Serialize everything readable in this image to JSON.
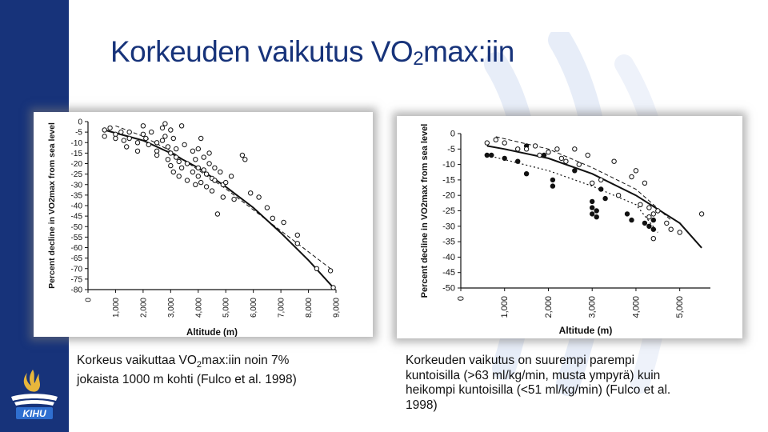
{
  "slide": {
    "title_pre": "Korkeuden vaikutus VO",
    "title_sub": "2",
    "title_post": "max:iin",
    "accent_color": "#17337a",
    "logo_text": "KIHU"
  },
  "caption_left": {
    "line1_pre": "Korkeus vaikuttaa VO",
    "line1_sub": "2",
    "line1_post": "max:iin noin 7%",
    "line2": "jokaista 1000 m kohti (Fulco et al. 1998)"
  },
  "caption_right": {
    "line1": "Korkeuden vaikutus on suurempi parempi",
    "line2": "kuntoisilla (>63 ml/kg/min, musta ympyrä) kuin",
    "line3": "heikompi kuntoisilla (<51 ml/kg/min) (Fulco et al.",
    "line4": "1998)"
  },
  "chart_data": [
    {
      "type": "scatter",
      "xlabel": "Altitude (m)",
      "ylabel": "Percent decline in VO2max from sea level",
      "x_ticks": [
        "0",
        "1,000",
        "2,000",
        "3,000",
        "4,000",
        "5,000",
        "6,000",
        "7,000",
        "8,000",
        "9,000"
      ],
      "y_ticks": [
        "0",
        "-5",
        "-10",
        "-15",
        "-20",
        "-25",
        "-30",
        "-35",
        "-40",
        "-45",
        "-50",
        "-55",
        "-60",
        "-65",
        "-70",
        "-75",
        "-80"
      ],
      "xlim": [
        0,
        9000
      ],
      "ylim": [
        -80,
        0
      ],
      "series": [
        {
          "marker": "open",
          "points": [
            [
              600,
              -4
            ],
            [
              600,
              -7
            ],
            [
              800,
              -3
            ],
            [
              1000,
              -6
            ],
            [
              1000,
              -8
            ],
            [
              1200,
              -5
            ],
            [
              1300,
              -9
            ],
            [
              1400,
              -12
            ],
            [
              1500,
              -5
            ],
            [
              1500,
              -8
            ],
            [
              1800,
              -10
            ],
            [
              1800,
              -14
            ],
            [
              2000,
              -2
            ],
            [
              2000,
              -6
            ],
            [
              2100,
              -8
            ],
            [
              2200,
              -11
            ],
            [
              2300,
              -5
            ],
            [
              2500,
              -10
            ],
            [
              2500,
              -14
            ],
            [
              2500,
              -16
            ],
            [
              2700,
              -3
            ],
            [
              2700,
              -9
            ],
            [
              2800,
              -1
            ],
            [
              2800,
              -7
            ],
            [
              2900,
              -12
            ],
            [
              2900,
              -18
            ],
            [
              3000,
              -4
            ],
            [
              3000,
              -15
            ],
            [
              3000,
              -21
            ],
            [
              3100,
              -8
            ],
            [
              3100,
              -24
            ],
            [
              3200,
              -13
            ],
            [
              3200,
              -17
            ],
            [
              3300,
              -19
            ],
            [
              3300,
              -26
            ],
            [
              3400,
              -2
            ],
            [
              3400,
              -22
            ],
            [
              3500,
              -11
            ],
            [
              3600,
              -20
            ],
            [
              3600,
              -28
            ],
            [
              3800,
              -14
            ],
            [
              3800,
              -24
            ],
            [
              3900,
              -18
            ],
            [
              3900,
              -30
            ],
            [
              4000,
              -13
            ],
            [
              4000,
              -22
            ],
            [
              4000,
              -26
            ],
            [
              4100,
              -8
            ],
            [
              4100,
              -29
            ],
            [
              4200,
              -17
            ],
            [
              4200,
              -23
            ],
            [
              4300,
              -25
            ],
            [
              4300,
              -31
            ],
            [
              4400,
              -15
            ],
            [
              4400,
              -20
            ],
            [
              4500,
              -27
            ],
            [
              4500,
              -33
            ],
            [
              4600,
              -22
            ],
            [
              4600,
              -28
            ],
            [
              4700,
              -44
            ],
            [
              4800,
              -24
            ],
            [
              4900,
              -30
            ],
            [
              4900,
              -36
            ],
            [
              5000,
              -29
            ],
            [
              5200,
              -26
            ],
            [
              5300,
              -37
            ],
            [
              5600,
              -16
            ],
            [
              5700,
              -18
            ],
            [
              5900,
              -34
            ],
            [
              6200,
              -36
            ],
            [
              6500,
              -41
            ],
            [
              6700,
              -46
            ],
            [
              7100,
              -48
            ],
            [
              7600,
              -54
            ],
            [
              7600,
              -58
            ],
            [
              8300,
              -70
            ],
            [
              8800,
              -71
            ],
            [
              8900,
              -79
            ]
          ]
        }
      ],
      "trend_lines": [
        "solid",
        "dashed"
      ]
    },
    {
      "type": "scatter",
      "xlabel": "Altitude (m)",
      "ylabel": "Percent decline in VO2max from sea level",
      "x_ticks": [
        "0",
        "1,000",
        "2,000",
        "3,000",
        "4,000",
        "5,000"
      ],
      "y_ticks": [
        "0",
        "-5",
        "-10",
        "-15",
        "-20",
        "-25",
        "-30",
        "-35",
        "-40",
        "-45",
        "-50"
      ],
      "xlim": [
        0,
        5700
      ],
      "ylim": [
        -50,
        0
      ],
      "series": [
        {
          "name": "",
          "marker": "filled",
          "points": [
            [
              600,
              -7
            ],
            [
              700,
              -7
            ],
            [
              1000,
              -8
            ],
            [
              1300,
              -9
            ],
            [
              1500,
              -4
            ],
            [
              1500,
              -13
            ],
            [
              1900,
              -7
            ],
            [
              2100,
              -15
            ],
            [
              2100,
              -17
            ],
            [
              2600,
              -12
            ],
            [
              3000,
              -22
            ],
            [
              3000,
              -24
            ],
            [
              3000,
              -26
            ],
            [
              3100,
              -25
            ],
            [
              3100,
              -27
            ],
            [
              3200,
              -18
            ],
            [
              3300,
              -21
            ],
            [
              3800,
              -26
            ],
            [
              3900,
              -28
            ],
            [
              4200,
              -29
            ],
            [
              4300,
              -30
            ],
            [
              4400,
              -28
            ],
            [
              4400,
              -31
            ]
          ]
        },
        {
          "name": "",
          "marker": "open",
          "points": [
            [
              600,
              -3
            ],
            [
              800,
              -2
            ],
            [
              1000,
              -3
            ],
            [
              1300,
              -5
            ],
            [
              1500,
              -5
            ],
            [
              1700,
              -4
            ],
            [
              1800,
              -7
            ],
            [
              2000,
              -6
            ],
            [
              2200,
              -5
            ],
            [
              2300,
              -8
            ],
            [
              2400,
              -9
            ],
            [
              2600,
              -5
            ],
            [
              2700,
              -10
            ],
            [
              2900,
              -7
            ],
            [
              3000,
              -16
            ],
            [
              3200,
              -15
            ],
            [
              3500,
              -9
            ],
            [
              3600,
              -20
            ],
            [
              3900,
              -14
            ],
            [
              4000,
              -12
            ],
            [
              4100,
              -23
            ],
            [
              4200,
              -16
            ],
            [
              4300,
              -27
            ],
            [
              4300,
              -24
            ],
            [
              4400,
              -26
            ],
            [
              4400,
              -34
            ],
            [
              4500,
              -25
            ],
            [
              4700,
              -29
            ],
            [
              4800,
              -31
            ],
            [
              5000,
              -32
            ],
            [
              5500,
              -26
            ]
          ]
        }
      ],
      "trend_lines": [
        "solid",
        "dashed",
        "dotted"
      ]
    }
  ]
}
